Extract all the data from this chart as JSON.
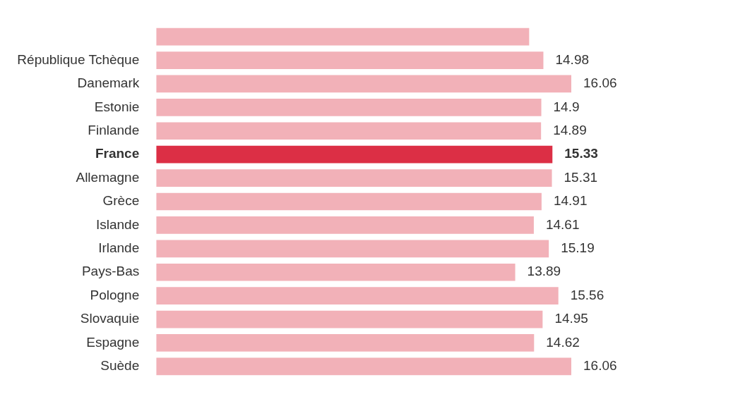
{
  "chart_data": {
    "type": "bar",
    "orientation": "horizontal",
    "categories": [
      null,
      "République Tchèque",
      "Danemark",
      "Estonie",
      "Finlande",
      "France",
      "Allemagne",
      "Grèce",
      "Islande",
      "Irlande",
      "Pays-Bas",
      "Pologne",
      "Slovaquie",
      "Espagne",
      "Suède"
    ],
    "values": [
      14.43,
      14.98,
      16.06,
      14.9,
      14.89,
      15.33,
      15.31,
      14.91,
      14.61,
      15.19,
      13.89,
      15.56,
      14.95,
      14.62,
      16.06
    ],
    "value_labels": [
      null,
      "14.98",
      "16.06",
      "14.9",
      "14.89",
      "15.33",
      "15.31",
      "14.91",
      "14.61",
      "15.19",
      "13.89",
      "15.56",
      "14.95",
      "14.62",
      "16.06"
    ],
    "colors": [
      "#f2b1b8",
      "#f2b1b8",
      "#f2b1b8",
      "#f2b1b8",
      "#f2b1b8",
      "#dc2f45",
      "#f2b1b8",
      "#f2b1b8",
      "#f2b1b8",
      "#f2b1b8",
      "#f2b1b8",
      "#f2b1b8",
      "#f2b1b8",
      "#f2b1b8",
      "#f2b1b8"
    ],
    "legend": false
  }
}
